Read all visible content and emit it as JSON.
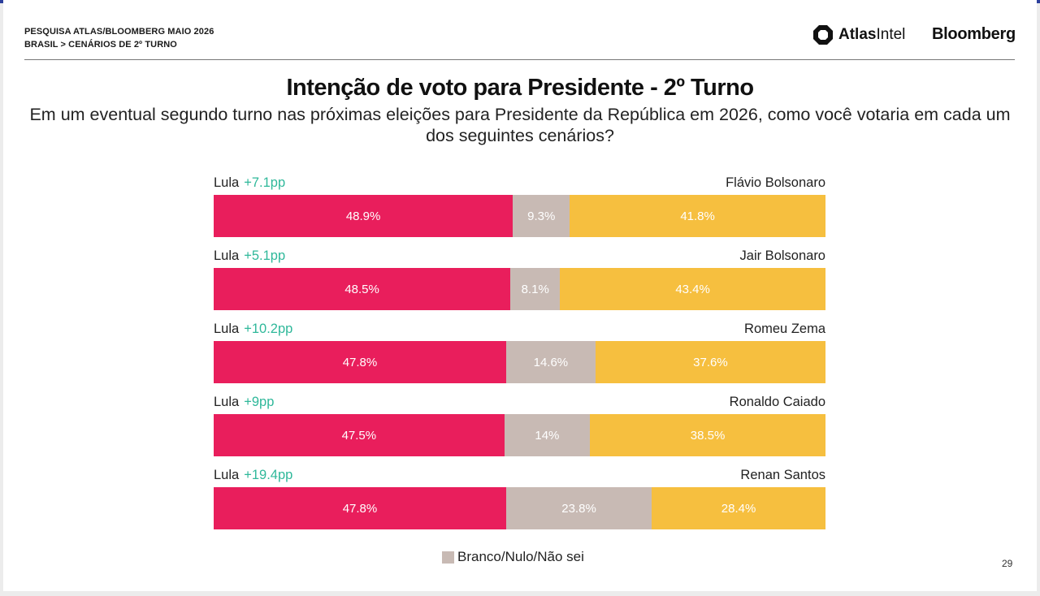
{
  "header": {
    "line1": "PESQUISA ATLAS/BLOOMBERG MAIO 2026",
    "line2": "BRASIL > CENÁRIOS DE 2º TURNO",
    "brand_atlas_bold": "Atlas",
    "brand_atlas_rest": "Intel",
    "brand_bloomberg": "Bloomberg"
  },
  "page_number": "29",
  "colors": {
    "lula": "#e91e5c",
    "neutral": "#c8bab4",
    "opponent": "#f6bf3f",
    "lead": "#2fb89a",
    "topbar": "#2c3f9c"
  },
  "chart_data": {
    "type": "bar",
    "orientation": "horizontal-stacked-100",
    "title": "Intenção de voto para Presidente - 2º Turno",
    "subtitle": "Em um eventual segundo turno nas próximas eleições para Presidente da República em 2026, como você votaria em cada um dos seguintes cenários?",
    "legend": [
      {
        "label": "Branco/Nulo/Não sei",
        "color": "#c8bab4"
      }
    ],
    "legend_position": "bottom",
    "categories": [
      "Flávio Bolsonaro",
      "Jair Bolsonaro",
      "Romeu Zema",
      "Ronaldo Caiado",
      "Renan Santos"
    ],
    "left_name": "Lula",
    "leads": [
      "+7.1pp",
      "+5.1pp",
      "+10.2pp",
      "+9pp",
      "+19.4pp"
    ],
    "series": [
      {
        "values": [
          48.9,
          48.5,
          47.8,
          47.5,
          47.8
        ],
        "labels": [
          "48.9%",
          "48.5%",
          "47.8%",
          "47.5%",
          "47.8%"
        ]
      },
      {
        "name": "Branco/Nulo/Não sei",
        "values": [
          9.3,
          8.1,
          14.6,
          14,
          23.8
        ],
        "labels": [
          "9.3%",
          "8.1%",
          "14.6%",
          "14%",
          "23.8%"
        ]
      },
      {
        "values": [
          41.8,
          43.4,
          37.6,
          38.5,
          28.4
        ],
        "labels": [
          "41.8%",
          "43.4%",
          "37.6%",
          "38.5%",
          "28.4%"
        ]
      }
    ]
  }
}
